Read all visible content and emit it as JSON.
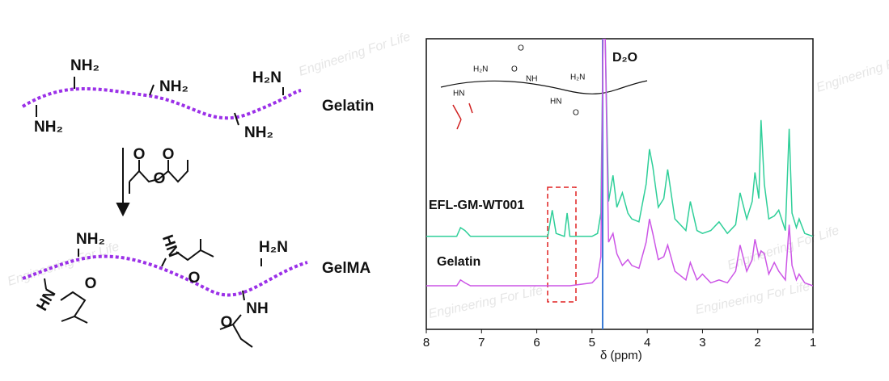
{
  "scheme": {
    "gelatin_label": "Gelatin",
    "gelma_label": "GelMA",
    "top_labels": [
      "NH₂",
      "NH₂",
      "H₂N",
      "NH₂",
      "NH₂"
    ],
    "reagent_labels": [
      "O",
      "O",
      "O"
    ],
    "bottom_labels": [
      "NH₂",
      "H₂N",
      "HN",
      "O",
      "HN",
      "O",
      "NH",
      "O"
    ]
  },
  "watermark": "Engineering For Life",
  "chart_data": {
    "type": "line",
    "xlabel": "δ (ppm)",
    "annotation": "D₂O",
    "inset_labels": [
      "H₂N",
      "HN",
      "O",
      "O",
      "NH",
      "H₂N",
      "HN",
      "O"
    ],
    "xlim": [
      8,
      1
    ],
    "xticks": [
      8,
      7,
      6,
      5,
      4,
      3,
      2,
      1
    ],
    "ylim": [
      0,
      100
    ],
    "x": [
      8.0,
      7.45,
      7.38,
      7.3,
      7.2,
      5.8,
      5.72,
      5.65,
      5.5,
      5.45,
      5.4,
      5.0,
      4.9,
      4.84,
      4.8,
      4.76,
      4.7,
      4.62,
      4.55,
      4.45,
      4.35,
      4.28,
      4.15,
      4.02,
      3.96,
      3.9,
      3.8,
      3.7,
      3.63,
      3.5,
      3.3,
      3.22,
      3.1,
      3.0,
      2.85,
      2.7,
      2.55,
      2.4,
      2.32,
      2.2,
      2.1,
      2.05,
      1.98,
      1.94,
      1.88,
      1.8,
      1.7,
      1.62,
      1.5,
      1.43,
      1.38,
      1.3,
      1.25,
      1.15,
      1.0
    ],
    "series": [
      {
        "name": "EFL-GM-WT001",
        "color": "#2fcf99",
        "values": [
          32,
          32,
          35,
          34,
          32,
          32,
          41,
          33,
          32,
          40,
          32,
          32,
          33,
          40,
          100,
          100,
          44,
          53,
          42,
          47,
          40,
          38,
          37,
          50,
          62,
          56,
          42,
          45,
          55,
          38,
          34,
          44,
          34,
          33,
          34,
          37,
          33,
          36,
          47,
          38,
          44,
          54,
          45,
          72,
          50,
          38,
          39,
          41,
          34,
          69,
          40,
          35,
          38,
          33,
          32
        ]
      },
      {
        "name": "Gelatin",
        "color": "#cc55e6",
        "values": [
          15,
          15,
          17,
          16,
          15,
          15,
          15,
          15,
          15,
          15,
          15,
          16,
          18,
          25,
          100,
          100,
          30,
          33,
          26,
          22,
          24,
          22,
          21,
          30,
          38,
          33,
          24,
          25,
          29,
          20,
          17,
          23,
          17,
          19,
          16,
          17,
          16,
          20,
          29,
          20,
          24,
          31,
          25,
          27,
          26,
          19,
          23,
          20,
          17,
          36,
          22,
          17,
          19,
          16,
          15
        ]
      }
    ]
  }
}
